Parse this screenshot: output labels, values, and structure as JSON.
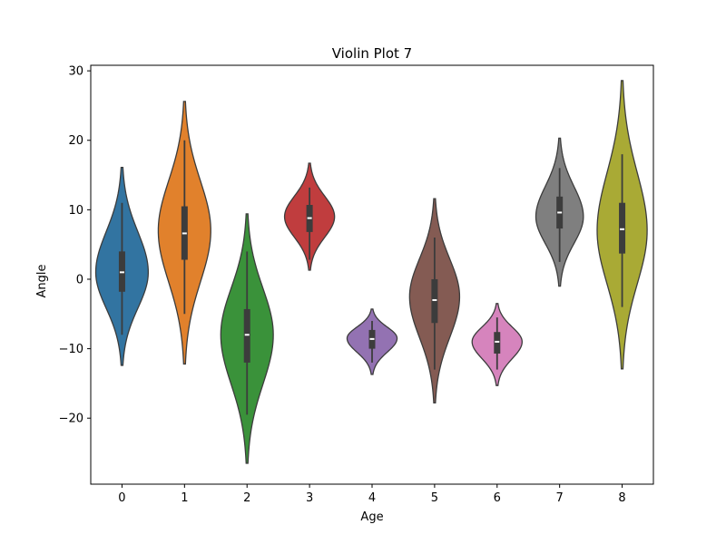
{
  "chart_data": {
    "type": "violin",
    "title": "Violin Plot 7",
    "xlabel": "Age",
    "ylabel": "Angle",
    "ylim": [
      -29.5,
      30.8
    ],
    "yticks": [
      -20,
      -10,
      0,
      10,
      20,
      30
    ],
    "ytick_labels": [
      "−20",
      "−10",
      "0",
      "10",
      "20",
      "30"
    ],
    "categories": [
      "0",
      "1",
      "2",
      "3",
      "4",
      "5",
      "6",
      "7",
      "8"
    ],
    "grid": false,
    "violins": [
      {
        "category": "0",
        "color": "#3274a1",
        "min": -12.4,
        "max": 16.1,
        "q1": -1.8,
        "median": 1.0,
        "q3": 4.0,
        "whisker_low": -8.0,
        "whisker_high": 11.0,
        "mode": 1.0,
        "max_half_width": 0.42
      },
      {
        "category": "1",
        "color": "#e1812c",
        "min": -12.2,
        "max": 25.6,
        "q1": 2.8,
        "median": 6.6,
        "q3": 10.5,
        "whisker_low": -5.0,
        "whisker_high": 20.0,
        "mode": 7.0,
        "max_half_width": 0.42
      },
      {
        "category": "2",
        "color": "#3a923a",
        "min": -26.5,
        "max": 9.4,
        "q1": -12.0,
        "median": -8.0,
        "q3": -4.3,
        "whisker_low": -19.5,
        "whisker_high": 4.0,
        "mode": -8.0,
        "max_half_width": 0.42
      },
      {
        "category": "3",
        "color": "#c03d3e",
        "min": 1.3,
        "max": 16.7,
        "q1": 6.8,
        "median": 8.8,
        "q3": 10.7,
        "whisker_low": 2.8,
        "whisker_high": 13.2,
        "mode": 9.0,
        "max_half_width": 0.4
      },
      {
        "category": "4",
        "color": "#9372b2",
        "min": -13.7,
        "max": -4.3,
        "q1": -10.0,
        "median": -8.6,
        "q3": -7.3,
        "whisker_low": -12.0,
        "whisker_high": -6.0,
        "mode": -8.5,
        "max_half_width": 0.4
      },
      {
        "category": "5",
        "color": "#845b53",
        "min": -17.8,
        "max": 11.6,
        "q1": -6.3,
        "median": -3.0,
        "q3": 0.0,
        "whisker_low": -13.0,
        "whisker_high": 6.0,
        "mode": -2.5,
        "max_half_width": 0.4
      },
      {
        "category": "6",
        "color": "#d684bd",
        "min": -15.3,
        "max": -3.5,
        "q1": -10.7,
        "median": -9.0,
        "q3": -7.6,
        "whisker_low": -13.0,
        "whisker_high": -5.5,
        "mode": -9.0,
        "max_half_width": 0.4
      },
      {
        "category": "7",
        "color": "#7f7f7f",
        "min": -1.0,
        "max": 20.3,
        "q1": 7.3,
        "median": 9.6,
        "q3": 11.9,
        "whisker_low": 2.5,
        "whisker_high": 16.0,
        "mode": 9.0,
        "max_half_width": 0.38
      },
      {
        "category": "8",
        "color": "#a9aa35",
        "min": -12.9,
        "max": 28.6,
        "q1": 3.7,
        "median": 7.2,
        "q3": 11.0,
        "whisker_low": -4.0,
        "whisker_high": 18.0,
        "mode": 7.0,
        "max_half_width": 0.4
      }
    ]
  }
}
